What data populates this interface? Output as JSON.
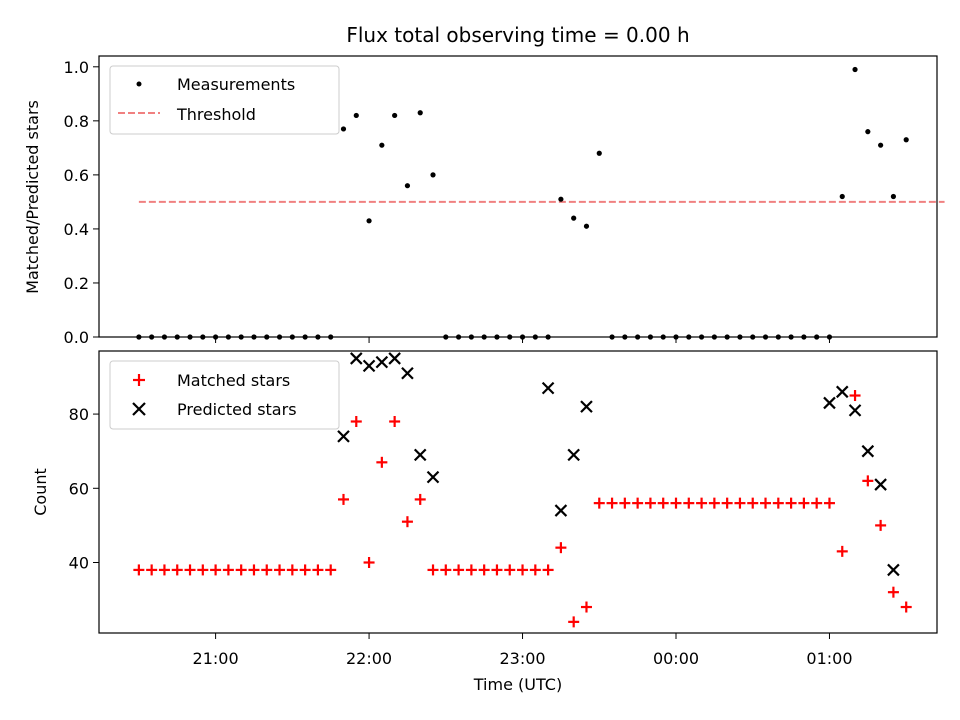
{
  "chart_data": [
    {
      "type": "scatter",
      "title": "Flux total observing time = 0.00 h",
      "ylabel": "Matched/Predicted stars",
      "xlabel": "",
      "ylim": [
        0,
        1.04
      ],
      "yticks": [
        "0.0",
        "0.2",
        "0.4",
        "0.6",
        "0.8",
        "1.0"
      ],
      "grid": false,
      "legend_position": "upper-left",
      "series": [
        {
          "name": "Measurements",
          "style": "point",
          "color": "#000000",
          "x": [
            "20:30",
            "20:35",
            "20:40",
            "20:45",
            "20:50",
            "20:55",
            "21:00",
            "21:05",
            "21:10",
            "21:15",
            "21:20",
            "21:25",
            "21:30",
            "21:35",
            "21:40",
            "21:45",
            "21:50",
            "21:55",
            "22:00",
            "22:05",
            "22:10",
            "22:15",
            "22:20",
            "22:25",
            "22:30",
            "22:35",
            "22:40",
            "22:45",
            "22:50",
            "22:55",
            "23:00",
            "23:05",
            "23:10",
            "23:15",
            "23:20",
            "23:25",
            "23:30",
            "23:35",
            "23:40",
            "23:45",
            "23:50",
            "23:55",
            "00:00",
            "00:05",
            "00:10",
            "00:15",
            "00:20",
            "00:25",
            "00:30",
            "00:35",
            "00:40",
            "00:45",
            "00:50",
            "00:55",
            "01:00",
            "01:05",
            "01:10",
            "01:15",
            "01:20",
            "01:25",
            "01:30",
            "01:35",
            "01:40",
            "01:45"
          ],
          "y": [
            0,
            0,
            0,
            0,
            0,
            0,
            0,
            0,
            0,
            0,
            0,
            0,
            0,
            0,
            0,
            0,
            0.77,
            0.82,
            0.43,
            0.71,
            0.82,
            0.56,
            0.83,
            0.6,
            0,
            0,
            0,
            0,
            0,
            0,
            0,
            0,
            0,
            0.51,
            0.44,
            0.41,
            0.68,
            0,
            0,
            0,
            0,
            0,
            0,
            0,
            0,
            0,
            0,
            0,
            0,
            0,
            0,
            0,
            0,
            0,
            0,
            0.52,
            0.99,
            0.76,
            0.71,
            0.52,
            0.73,
            null,
            null,
            null
          ]
        },
        {
          "name": "Threshold",
          "style": "dashed-line",
          "color": "#f08080",
          "x": [
            "20:30",
            "01:45"
          ],
          "y": [
            0.5,
            0.5
          ]
        }
      ]
    },
    {
      "type": "scatter",
      "title": "",
      "ylabel": "Count",
      "xlabel": "Time (UTC)",
      "ylim": [
        21,
        97
      ],
      "yticks": [
        "40",
        "60",
        "80"
      ],
      "xticks": [
        "21:00",
        "22:00",
        "23:00",
        "00:00",
        "01:00"
      ],
      "xtick_minutes": [
        1260,
        1320,
        1380,
        1440,
        1500
      ],
      "grid": false,
      "legend_position": "upper-left",
      "series": [
        {
          "name": "Matched stars",
          "style": "plus",
          "color": "#ff0000",
          "x": [
            "20:30",
            "20:35",
            "20:40",
            "20:45",
            "20:50",
            "20:55",
            "21:00",
            "21:05",
            "21:10",
            "21:15",
            "21:20",
            "21:25",
            "21:30",
            "21:35",
            "21:40",
            "21:45",
            "21:50",
            "21:55",
            "22:00",
            "22:05",
            "22:10",
            "22:15",
            "22:20",
            "22:25",
            "22:30",
            "22:35",
            "22:40",
            "22:45",
            "22:50",
            "22:55",
            "23:00",
            "23:05",
            "23:10",
            "23:15",
            "23:20",
            "23:25",
            "23:30",
            "23:35",
            "23:40",
            "23:45",
            "23:50",
            "23:55",
            "00:00",
            "00:05",
            "00:10",
            "00:15",
            "00:20",
            "00:25",
            "00:30",
            "00:35",
            "00:40",
            "00:45",
            "00:50",
            "00:55",
            "01:00",
            "01:05",
            "01:10",
            "01:15",
            "01:20",
            "01:25",
            "01:30"
          ],
          "y": [
            38,
            38,
            38,
            38,
            38,
            38,
            38,
            38,
            38,
            38,
            38,
            38,
            38,
            38,
            38,
            38,
            57,
            78,
            40,
            67,
            78,
            51,
            57,
            38,
            38,
            38,
            38,
            38,
            38,
            38,
            38,
            38,
            38,
            44,
            24,
            28,
            56,
            56,
            56,
            56,
            56,
            56,
            56,
            56,
            56,
            56,
            56,
            56,
            56,
            56,
            56,
            56,
            56,
            56,
            56,
            43,
            85,
            62,
            50,
            32,
            28
          ]
        },
        {
          "name": "Predicted stars",
          "style": "x",
          "color": "#000000",
          "x": [
            "21:50",
            "21:55",
            "22:00",
            "22:05",
            "22:10",
            "22:15",
            "22:20",
            "22:25",
            "23:10",
            "23:15",
            "23:20",
            "23:25",
            "01:00",
            "01:05",
            "01:10",
            "01:15",
            "01:20",
            "01:25"
          ],
          "y": [
            74,
            95,
            93,
            94,
            95,
            91,
            69,
            63,
            87,
            54,
            69,
            82,
            83,
            86,
            81,
            70,
            61,
            38
          ]
        }
      ]
    }
  ]
}
